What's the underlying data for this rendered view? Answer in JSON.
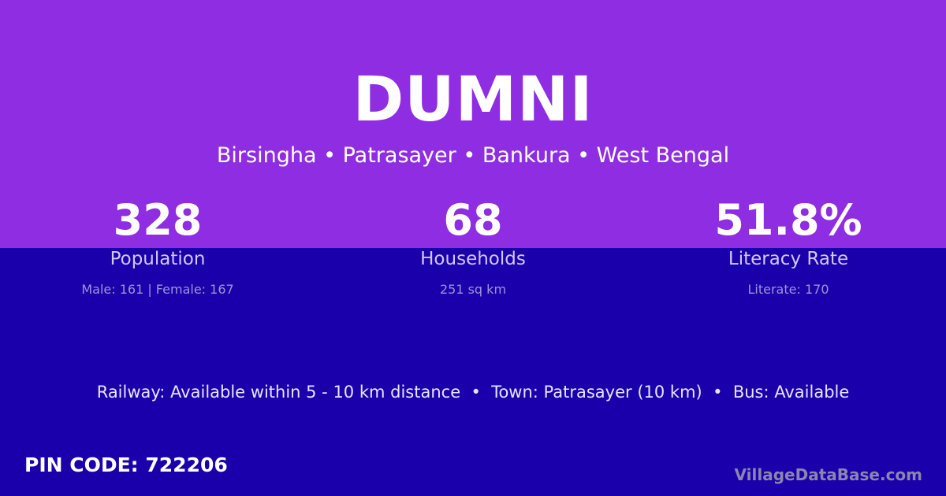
{
  "village": "DUMNI",
  "location": "Birsingha • Patrasayer • Bankura • West Bengal",
  "stats": [
    {
      "value": "328",
      "label": "Population",
      "sub": "Male: 161 | Female: 167"
    },
    {
      "value": "68",
      "label": "Households",
      "sub": "251 sq km"
    },
    {
      "value": "51.8%",
      "label": "Literacy Rate",
      "sub": "Literate: 170"
    }
  ],
  "connectivity": "Railway: Available within 5 - 10 km distance  •  Town: Patrasayer (10 km)  •  Bus: Available",
  "pin_code": "PIN CODE: 722206",
  "brand": "VillageDataBase.com",
  "colors": {
    "top": "#8e2de2",
    "bottom": "#1a00aa"
  }
}
